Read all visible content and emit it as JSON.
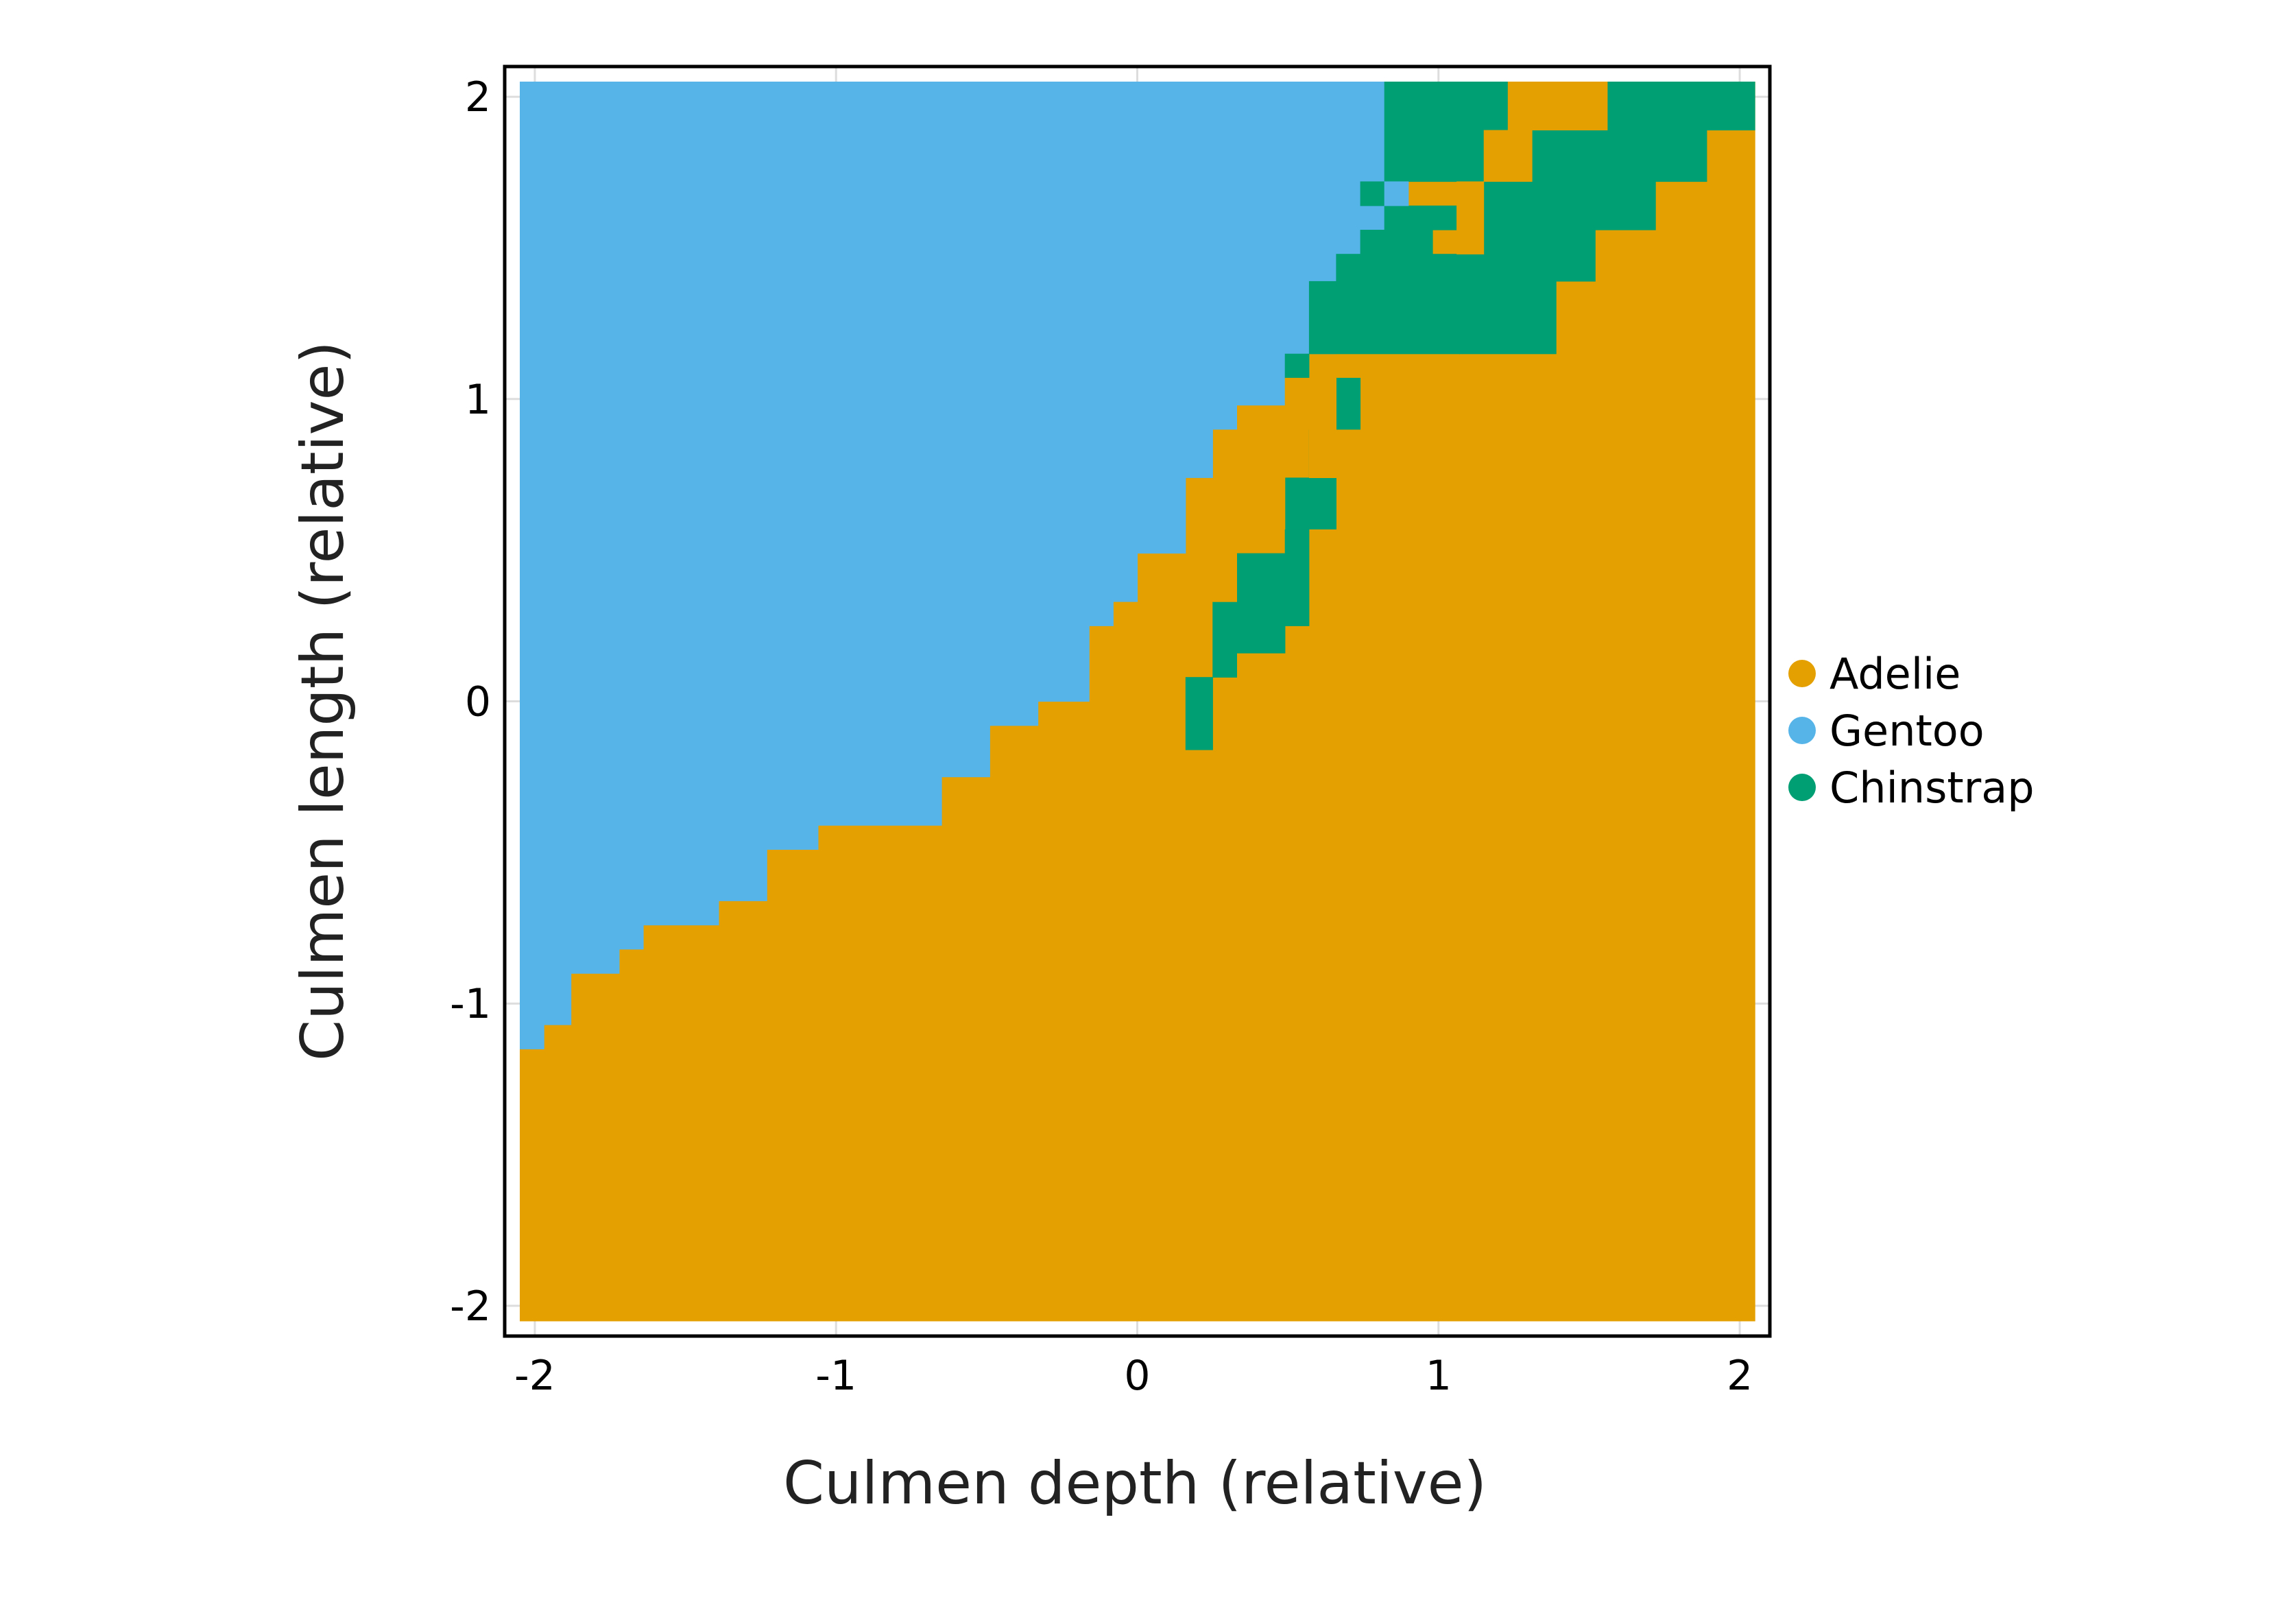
{
  "chart_data": {
    "type": "heatmap",
    "title": "",
    "xlabel": "Culmen depth (relative)",
    "ylabel": "Culmen length (relative)",
    "xlim": [
      -2.1,
      2.1
    ],
    "ylim": [
      -2.1,
      2.1
    ],
    "xticks": [
      -2,
      -1,
      0,
      1,
      2
    ],
    "yticks": [
      -2,
      -1,
      0,
      1,
      2
    ],
    "xtick_labels": [
      "-2",
      "-1",
      "0",
      "1",
      "2"
    ],
    "ytick_labels": [
      "-2",
      "-1",
      "0",
      "1",
      "2"
    ],
    "grid": true,
    "legend_position": "right",
    "classes": [
      {
        "name": "Adelie",
        "color": "#E4A000"
      },
      {
        "name": "Gentoo",
        "color": "#56B4E9"
      },
      {
        "name": "Chinstrap",
        "color": "#009E73"
      }
    ],
    "grid_extent": {
      "x": [
        -2.05,
        2.05
      ],
      "y": [
        -2.05,
        2.05
      ]
    },
    "grid_shape": {
      "cols": 50,
      "rows": 50
    },
    "boundaries": {
      "gentoo_adelie_boundary_y": [
        [
          -2.05,
          -1.15
        ],
        [
          -1.97,
          -1.07
        ],
        [
          -1.88,
          -0.9
        ],
        [
          -1.72,
          -0.82
        ],
        [
          -1.64,
          -0.74
        ],
        [
          -1.39,
          -0.66
        ],
        [
          -1.23,
          -0.49
        ],
        [
          -1.06,
          -0.41
        ],
        [
          -0.65,
          -0.25
        ],
        [
          -0.49,
          -0.08
        ],
        [
          -0.33,
          0.0
        ],
        [
          -0.16,
          0.25
        ],
        [
          -0.08,
          0.33
        ],
        [
          0.0,
          0.49
        ],
        [
          0.16,
          0.74
        ],
        [
          0.25,
          0.9
        ],
        [
          0.33,
          0.98
        ],
        [
          0.49,
          1.07
        ],
        [
          0.57,
          1.15
        ],
        [
          0.66,
          1.31
        ],
        [
          0.74,
          1.48
        ],
        [
          0.82,
          1.72
        ],
        [
          0.82,
          2.05
        ]
      ],
      "chinstrap_cells": [
        {
          "x": [
            0.16,
            0.25
          ],
          "y": [
            -0.16,
            0.08
          ]
        },
        {
          "x": [
            0.25,
            0.33
          ],
          "y": [
            0.08,
            0.33
          ]
        },
        {
          "x": [
            0.33,
            0.49
          ],
          "y": [
            0.16,
            0.49
          ]
        },
        {
          "x": [
            0.49,
            0.57
          ],
          "y": [
            0.25,
            0.57
          ]
        },
        {
          "x": [
            0.49,
            0.66
          ],
          "y": [
            0.57,
            0.74
          ]
        },
        {
          "x": [
            0.57,
            0.66
          ],
          "y": [
            0.74,
            0.9
          ]
        },
        {
          "x": [
            0.66,
            0.74
          ],
          "y": [
            0.9,
            1.07
          ]
        },
        {
          "x": [
            0.49,
            0.57
          ],
          "y": [
            1.07,
            1.15
          ]
        },
        {
          "x": [
            0.57,
            1.07
          ],
          "y": [
            1.15,
            1.39
          ]
        },
        {
          "x": [
            0.66,
            1.07
          ],
          "y": [
            1.39,
            1.48
          ]
        },
        {
          "x": [
            0.74,
            0.98
          ],
          "y": [
            1.48,
            1.56
          ]
        },
        {
          "x": [
            0.74,
            0.82
          ],
          "y": [
            1.64,
            1.72
          ]
        },
        {
          "x": [
            0.82,
            1.06
          ],
          "y": [
            1.56,
            1.64
          ]
        },
        {
          "x": [
            0.82,
            1.23
          ],
          "y": [
            1.72,
            1.89
          ]
        },
        {
          "x": [
            0.82,
            1.23
          ],
          "y": [
            1.89,
            2.05
          ]
        },
        {
          "x": [
            1.07,
            1.39
          ],
          "y": [
            1.15,
            1.39
          ]
        },
        {
          "x": [
            1.07,
            1.52
          ],
          "y": [
            1.39,
            1.56
          ]
        },
        {
          "x": [
            1.15,
            1.72
          ],
          "y": [
            1.56,
            1.72
          ]
        },
        {
          "x": [
            1.31,
            1.89
          ],
          "y": [
            1.72,
            1.89
          ]
        },
        {
          "x": [
            1.48,
            2.05
          ],
          "y": [
            1.89,
            2.05
          ]
        }
      ],
      "adelie_island_cells": [
        {
          "x": [
            1.23,
            1.56
          ],
          "y": [
            1.89,
            2.05
          ]
        },
        {
          "x": [
            1.15,
            1.31
          ],
          "y": [
            1.72,
            1.89
          ]
        },
        {
          "x": [
            1.06,
            1.15
          ],
          "y": [
            1.48,
            1.72
          ]
        },
        {
          "x": [
            0.49,
            0.66
          ],
          "y": [
            0.9,
            1.07
          ]
        },
        {
          "x": [
            0.57,
            0.66
          ],
          "y": [
            0.74,
            0.9
          ]
        },
        {
          "x": [
            0.41,
            0.49
          ],
          "y": [
            0.57,
            0.74
          ]
        },
        {
          "x": [
            0.25,
            0.33
          ],
          "y": [
            0.33,
            0.49
          ]
        }
      ],
      "gentoo_island_cells": [
        {
          "x": [
            0.82,
            0.9
          ],
          "y": [
            1.64,
            1.72
          ]
        }
      ]
    }
  }
}
